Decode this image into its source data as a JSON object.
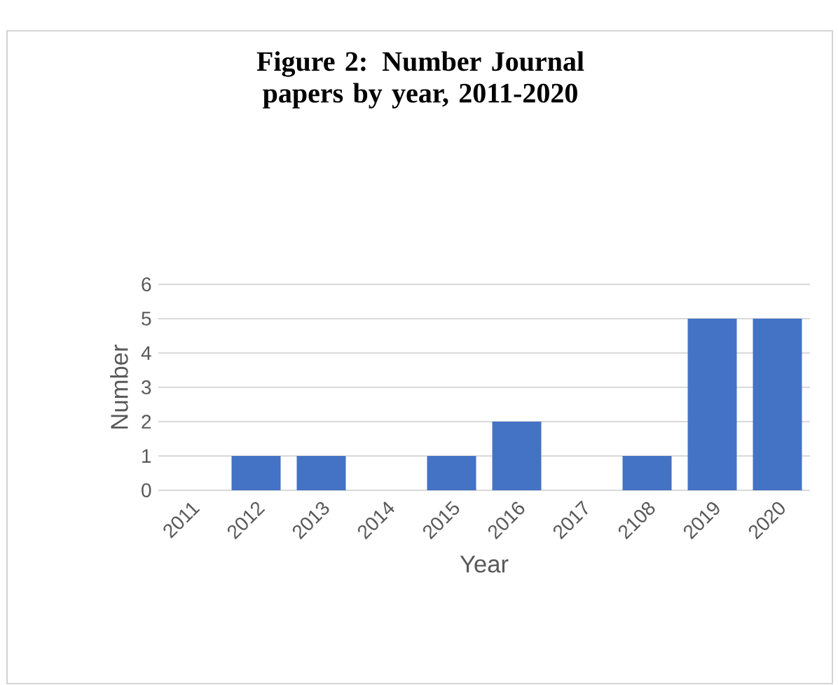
{
  "chart_data": {
    "type": "bar",
    "title": "Figure 2: Number Journal papers by year, 2011-2020",
    "xlabel": "Year",
    "ylabel": "Number",
    "categories": [
      "2011",
      "2012",
      "2013",
      "2014",
      "2015",
      "2016",
      "2017",
      "2108",
      "2019",
      "2020"
    ],
    "values": [
      0,
      1,
      1,
      0,
      1,
      2,
      0,
      1,
      5,
      5
    ],
    "color": "#4472c4",
    "ylim": [
      0,
      6
    ],
    "yticks": [
      0,
      1,
      2,
      3,
      4,
      5,
      6
    ],
    "grid": "y"
  }
}
